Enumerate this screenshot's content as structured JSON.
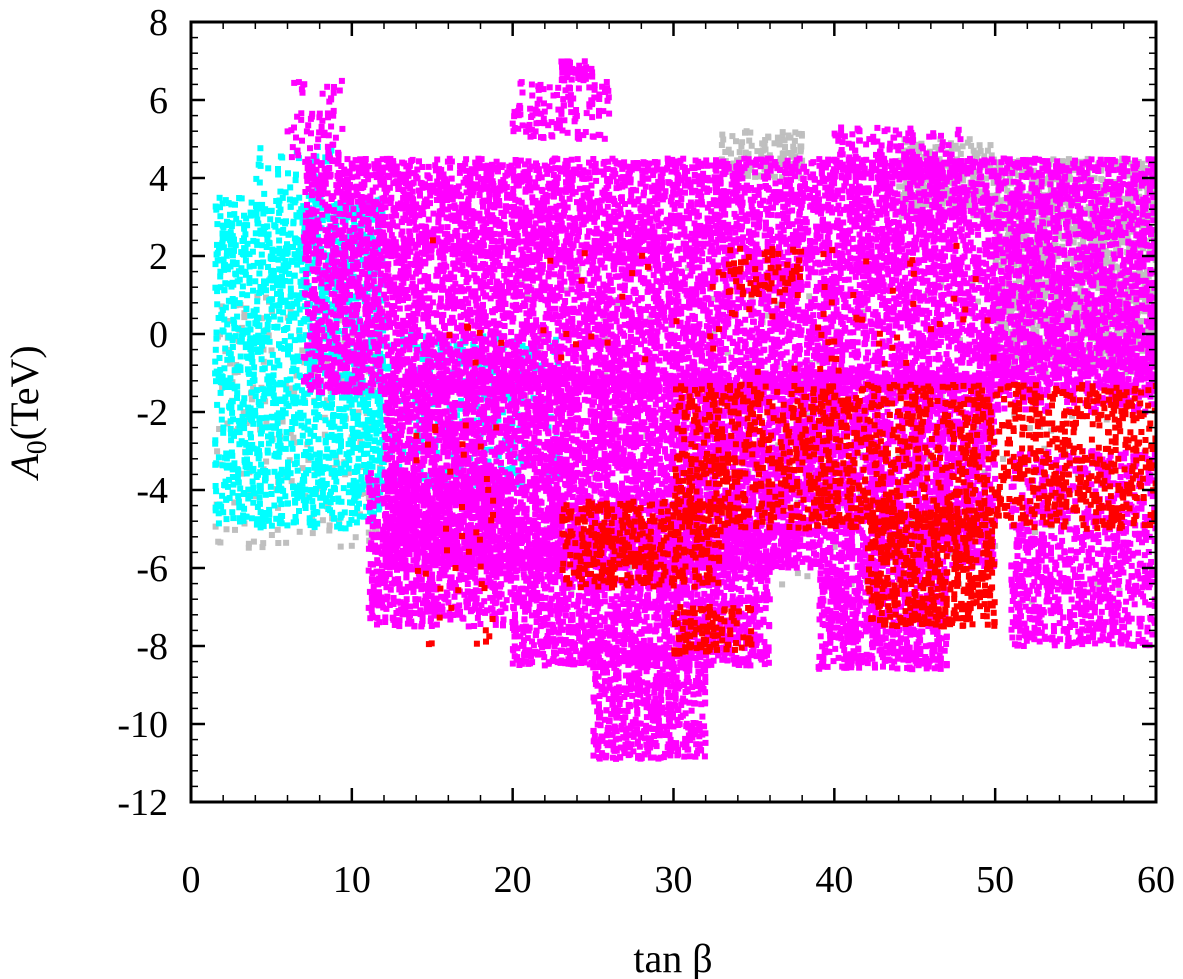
{
  "chart_data": {
    "type": "scatter",
    "xlabel": "tan β",
    "ylabel_symbol": "A",
    "ylabel_subscript": "0",
    "ylabel_unit": "(TeV)",
    "xlim": [
      0,
      60
    ],
    "ylim": [
      -12,
      8
    ],
    "x_ticks": [
      "0",
      "10",
      "20",
      "30",
      "40",
      "50",
      "60"
    ],
    "y_ticks": [
      "8",
      "6",
      "4",
      "2",
      "0",
      "-2",
      "-4",
      "-6",
      "-8",
      "-10",
      "-12"
    ],
    "grid": false,
    "legend": "none",
    "series": [
      {
        "color": "#bfbfbf",
        "regions": [
          {
            "x": [
              50,
              60
            ],
            "y": [
              -1,
              4.5
            ],
            "n": 1400
          },
          {
            "x": [
              44,
              50
            ],
            "y": [
              3,
              5
            ],
            "n": 250
          },
          {
            "x": [
              33,
              38
            ],
            "y": [
              4,
              5.2
            ],
            "n": 120
          },
          {
            "x": [
              1.5,
              12
            ],
            "y": [
              -5.5,
              1
            ],
            "n": 220
          },
          {
            "x": [
              20,
              60
            ],
            "y": [
              -7,
              2
            ],
            "n": 260
          }
        ]
      },
      {
        "color": "#00ffff",
        "regions": [
          {
            "x": [
              1.5,
              12
            ],
            "y": [
              -5,
              3.5
            ],
            "n": 1600
          },
          {
            "x": [
              10,
              23
            ],
            "y": [
              -4,
              0
            ],
            "n": 450
          },
          {
            "x": [
              4,
              9
            ],
            "y": [
              2,
              4.8
            ],
            "n": 90
          }
        ]
      },
      {
        "color": "#ff00ff",
        "regions": [
          {
            "x": [
              7,
              60
            ],
            "y": [
              -1.5,
              4.5
            ],
            "n": 9000
          },
          {
            "x": [
              12,
              50
            ],
            "y": [
              -6,
              -1
            ],
            "n": 6500
          },
          {
            "x": [
              11,
              20
            ],
            "y": [
              -7.5,
              -3.5
            ],
            "n": 900
          },
          {
            "x": [
              20,
              36
            ],
            "y": [
              -8.5,
              -5
            ],
            "n": 1700
          },
          {
            "x": [
              25,
              32
            ],
            "y": [
              -10.9,
              -8
            ],
            "n": 550
          },
          {
            "x": [
              39,
              47
            ],
            "y": [
              -8.6,
              -6
            ],
            "n": 650
          },
          {
            "x": [
              51,
              60
            ],
            "y": [
              -8,
              -3
            ],
            "n": 900
          },
          {
            "x": [
              20,
              26
            ],
            "y": [
              5,
              6.5
            ],
            "n": 120
          },
          {
            "x": [
              23,
              25
            ],
            "y": [
              6.5,
              7
            ],
            "n": 45
          },
          {
            "x": [
              40,
              48
            ],
            "y": [
              4,
              5.3
            ],
            "n": 160
          },
          {
            "x": [
              6,
              9.5
            ],
            "y": [
              4.5,
              6.5
            ],
            "n": 60
          },
          {
            "x": [
              49,
              60
            ],
            "y": [
              -2,
              0
            ],
            "n": 300
          }
        ]
      },
      {
        "color": "#ff0000",
        "regions": [
          {
            "x": [
              30,
              60
            ],
            "y": [
              -5,
              -1.3
            ],
            "n": 1500
          },
          {
            "x": [
              23,
              33
            ],
            "y": [
              -6.5,
              -4.3
            ],
            "n": 420
          },
          {
            "x": [
              42,
              50
            ],
            "y": [
              -7.5,
              -4.5
            ],
            "n": 520
          },
          {
            "x": [
              30,
              35
            ],
            "y": [
              -8.2,
              -7
            ],
            "n": 110
          },
          {
            "x": [
              15,
              50
            ],
            "y": [
              -1,
              2.5
            ],
            "n": 80
          },
          {
            "x": [
              33,
              38
            ],
            "y": [
              1,
              2.2
            ],
            "n": 60
          },
          {
            "x": [
              14,
              19
            ],
            "y": [
              -8,
              -2
            ],
            "n": 40
          }
        ]
      }
    ]
  }
}
